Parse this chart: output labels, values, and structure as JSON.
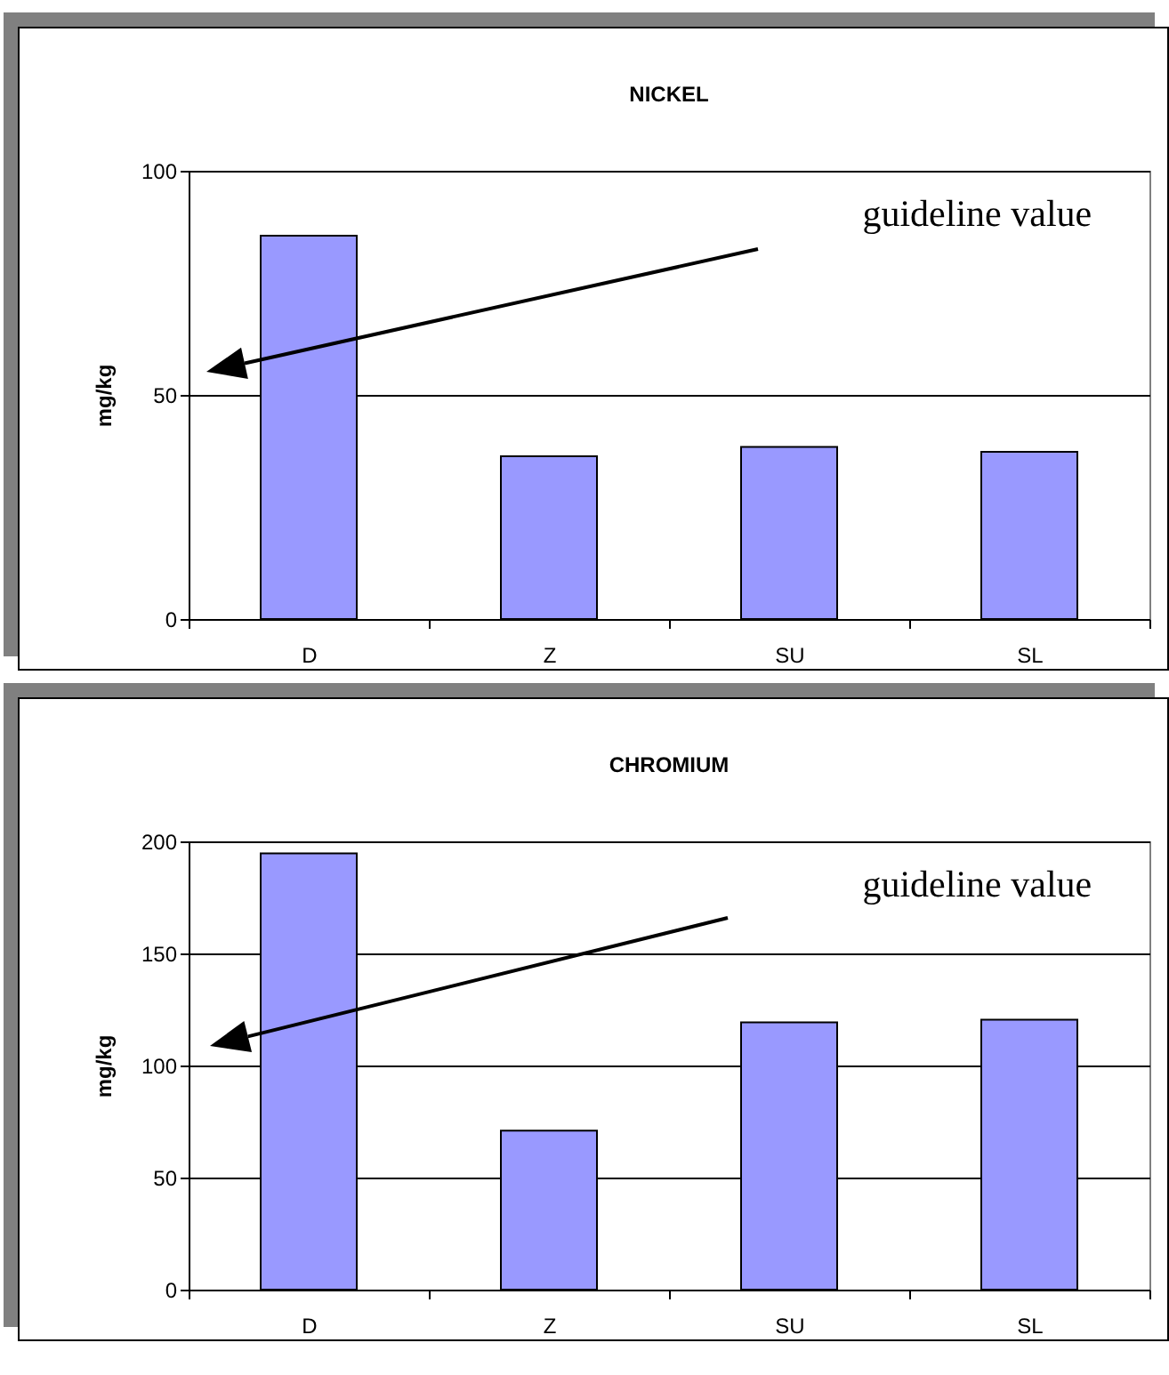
{
  "chart_data": [
    {
      "type": "bar",
      "title": "NICKEL",
      "ylabel": "mg/kg",
      "categories": [
        "D",
        "Z",
        "SU",
        "SL"
      ],
      "values": [
        85.5,
        36.3,
        38.4,
        37.3
      ],
      "color": "#9999ff",
      "ylim": [
        0,
        100
      ],
      "yticks": [
        0,
        50,
        100
      ],
      "grid": "y",
      "annotations": [
        "guideline value"
      ]
    },
    {
      "type": "bar",
      "title": "CHROMIUM",
      "ylabel": "mg/kg",
      "categories": [
        "D",
        "Z",
        "SU",
        "SL"
      ],
      "values": [
        194.6,
        70.9,
        119.2,
        120.4
      ],
      "color": "#9999ff",
      "ylim": [
        0,
        200
      ],
      "yticks": [
        0,
        50,
        100,
        150,
        200
      ],
      "grid": "y",
      "annotations": [
        "guideline value"
      ]
    }
  ]
}
